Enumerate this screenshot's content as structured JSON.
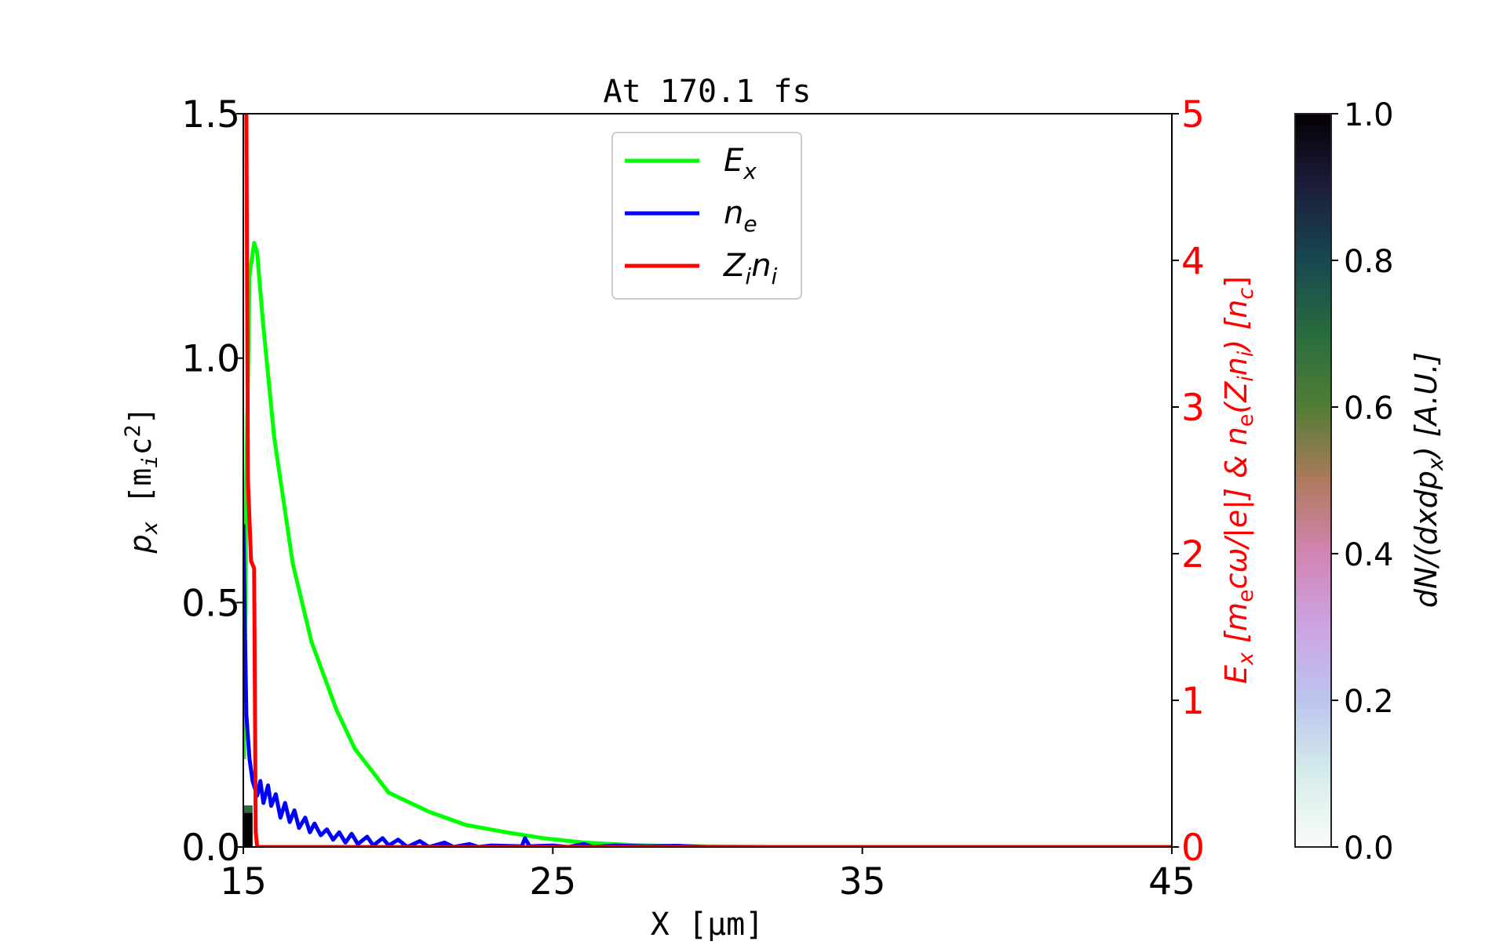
{
  "chart_data": {
    "type": "line",
    "title": "At 170.1 fs",
    "xlabel": "X  [μm]",
    "ylabel_left": {
      "main": "p",
      "sub": "x",
      "unit_open": "  [m",
      "unit_sub": "i",
      "unit_rest": "c",
      "unit_sup": "2",
      "unit_close": "]"
    },
    "ylabel_right": {
      "p1": "E",
      "p1_sub": "x",
      "p2": "  [m",
      "p2_sub": "e",
      "p3": "cω/|e|]  &  n",
      "p3_sub": "e",
      "p4": "(Z",
      "p4_sub": "i",
      "p5": "n",
      "p5_sub": "i",
      "p6": ")  [n",
      "p6_sub": "c",
      "p7": "]"
    },
    "colorbar_label": {
      "main": "dN/(dxdp",
      "sub": "x",
      "rest": ")  [A.U.]"
    },
    "xlim": [
      15,
      45
    ],
    "ylim_left": [
      0,
      1.5
    ],
    "ylim_right": [
      0,
      5
    ],
    "xticks": [
      "15",
      "25",
      "35",
      "45"
    ],
    "yticks_left": [
      "0.0",
      "0.5",
      "1.0",
      "1.5"
    ],
    "yticks_right": [
      "0",
      "1",
      "2",
      "3",
      "4",
      "5"
    ],
    "colorbar_ticks": [
      "0.0",
      "0.2",
      "0.4",
      "0.6",
      "0.8",
      "1.0"
    ],
    "colorbar_range": [
      0,
      1
    ],
    "colormap": "cubehelix_r",
    "right_axis_color": "#ff0000",
    "grid": false,
    "legend_position": "upper-center",
    "legend": [
      {
        "label": "E",
        "sub": "x",
        "color": "#00ff00"
      },
      {
        "label": "n",
        "sub": "e",
        "color": "#0000ff"
      },
      {
        "label": "Z",
        "sub": "i",
        "label2": "n",
        "sub2": "i",
        "color": "#ff0000"
      }
    ],
    "heatmap_cells": [
      {
        "x0": 15.0,
        "x1": 15.3,
        "y0": 0.0,
        "y1": 0.07,
        "value": 1.0
      },
      {
        "x0": 15.0,
        "x1": 15.3,
        "y0": 0.07,
        "y1": 0.085,
        "value": 0.7
      }
    ],
    "series": [
      {
        "name": "E_x",
        "axis": "right",
        "color": "#00ff00",
        "x": [
          15.02,
          15.1,
          15.2,
          15.35,
          15.45,
          15.63,
          16.0,
          16.6,
          17.2,
          18.0,
          18.6,
          19.7,
          21.0,
          22.2,
          23.5,
          24.7,
          26.0,
          27.6,
          29.2,
          32,
          45
        ],
        "y": [
          0.6,
          2.5,
          3.9,
          4.12,
          4.05,
          3.59,
          2.79,
          1.93,
          1.4,
          0.94,
          0.67,
          0.37,
          0.24,
          0.15,
          0.1,
          0.06,
          0.03,
          0.013,
          0.005,
          0.0,
          0.0
        ]
      },
      {
        "name": "n_e",
        "axis": "right",
        "color": "#0000ff",
        "x": [
          15.0,
          15.05,
          15.1,
          15.2,
          15.3,
          15.45,
          15.55,
          15.65,
          15.8,
          15.9,
          16.05,
          16.2,
          16.35,
          16.5,
          16.65,
          16.8,
          17.0,
          17.15,
          17.3,
          17.5,
          17.7,
          17.9,
          18.1,
          18.3,
          18.5,
          18.7,
          19.0,
          19.2,
          19.5,
          19.7,
          20.0,
          20.3,
          20.7,
          21.0,
          21.5,
          21.8,
          22.3,
          22.6,
          23.0,
          24.0,
          24.1,
          24.25,
          25.0,
          25.5,
          26.0,
          26.3,
          27.0,
          28.0,
          29.0,
          30.0,
          45.0
        ],
        "y": [
          2.2,
          1.5,
          0.9,
          0.6,
          0.45,
          0.35,
          0.45,
          0.3,
          0.42,
          0.28,
          0.36,
          0.2,
          0.3,
          0.17,
          0.25,
          0.13,
          0.2,
          0.1,
          0.16,
          0.08,
          0.12,
          0.05,
          0.1,
          0.03,
          0.09,
          0.02,
          0.07,
          0.01,
          0.06,
          0.01,
          0.05,
          0.0,
          0.04,
          0.0,
          0.03,
          0.0,
          0.02,
          0.0,
          0.01,
          0.005,
          0.06,
          0.005,
          0.01,
          0.0,
          0.02,
          0.0,
          0.01,
          0.005,
          0.008,
          0.0,
          0.0
        ]
      },
      {
        "name": "Z_i n_i",
        "axis": "right",
        "color": "#ff0000",
        "x": [
          15.08,
          15.1,
          15.15,
          15.25,
          15.35,
          15.4,
          15.45,
          45.0
        ],
        "y": [
          5.5,
          5.0,
          2.5,
          1.95,
          1.9,
          0.1,
          0.0,
          0.0
        ]
      }
    ]
  }
}
